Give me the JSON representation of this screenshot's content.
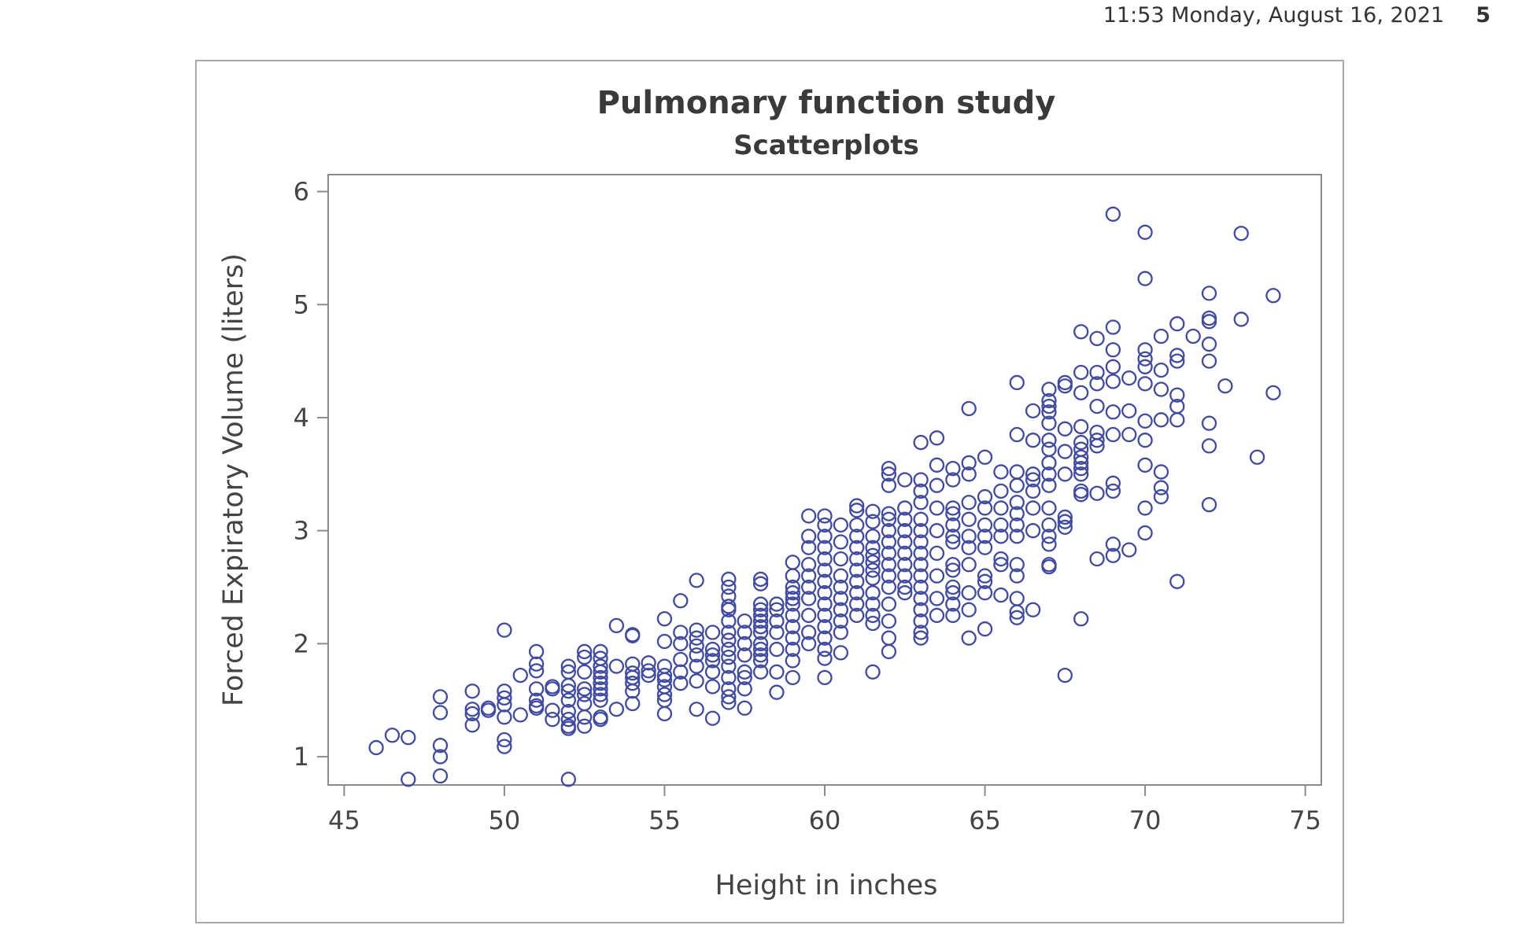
{
  "page_header": {
    "datetime": "11:53 Monday, August 16, 2021",
    "page_number": "5"
  },
  "colors": {
    "marker": "#3f4aa8",
    "axis": "#8c8c8c",
    "frame": "#a8a8a8",
    "text": "#444444"
  },
  "chart_data": {
    "type": "scatter",
    "title": "Pulmonary function study",
    "subtitle": "Scatterplots",
    "xlabel": "Height in inches",
    "ylabel": "Forced Expiratory Volume (liters)",
    "xlim": [
      44.5,
      75.5
    ],
    "ylim": [
      0.75,
      6.15
    ],
    "xticks": [
      45,
      50,
      55,
      60,
      65,
      70,
      75
    ],
    "yticks": [
      1,
      2,
      3,
      4,
      5,
      6
    ],
    "marker": "open-circle",
    "grid": false,
    "legend": "none",
    "points": [
      [
        46,
        1.08
      ],
      [
        46.5,
        1.19
      ],
      [
        47,
        1.17
      ],
      [
        47,
        0.8
      ],
      [
        48,
        1.53
      ],
      [
        48,
        1.39
      ],
      [
        48,
        1.1
      ],
      [
        48,
        1.0
      ],
      [
        48,
        0.83
      ],
      [
        49,
        1.58
      ],
      [
        49,
        1.42
      ],
      [
        49,
        1.38
      ],
      [
        49,
        1.28
      ],
      [
        49.5,
        1.43
      ],
      [
        49.5,
        1.41
      ],
      [
        50,
        2.12
      ],
      [
        50,
        1.58
      ],
      [
        50,
        1.52
      ],
      [
        50,
        1.46
      ],
      [
        50,
        1.35
      ],
      [
        50,
        1.15
      ],
      [
        50,
        1.09
      ],
      [
        50.5,
        1.72
      ],
      [
        50.5,
        1.37
      ],
      [
        51,
        1.93
      ],
      [
        51,
        1.82
      ],
      [
        51,
        1.76
      ],
      [
        51,
        1.6
      ],
      [
        51,
        1.5
      ],
      [
        51,
        1.45
      ],
      [
        51,
        1.43
      ],
      [
        51.5,
        1.62
      ],
      [
        51.5,
        1.6
      ],
      [
        51.5,
        1.41
      ],
      [
        51.5,
        1.33
      ],
      [
        52,
        1.8
      ],
      [
        52,
        1.75
      ],
      [
        52,
        1.63
      ],
      [
        52,
        1.58
      ],
      [
        52,
        1.5
      ],
      [
        52,
        1.4
      ],
      [
        52,
        1.33
      ],
      [
        52,
        1.27
      ],
      [
        52,
        1.25
      ],
      [
        52,
        0.8
      ],
      [
        52.5,
        1.93
      ],
      [
        52.5,
        1.88
      ],
      [
        52.5,
        1.75
      ],
      [
        52.5,
        1.6
      ],
      [
        52.5,
        1.55
      ],
      [
        52.5,
        1.47
      ],
      [
        52.5,
        1.35
      ],
      [
        52.5,
        1.27
      ],
      [
        53,
        1.93
      ],
      [
        53,
        1.87
      ],
      [
        53,
        1.8
      ],
      [
        53,
        1.75
      ],
      [
        53,
        1.7
      ],
      [
        53,
        1.65
      ],
      [
        53,
        1.6
      ],
      [
        53,
        1.55
      ],
      [
        53,
        1.5
      ],
      [
        53,
        1.35
      ],
      [
        53,
        1.33
      ],
      [
        53.5,
        2.16
      ],
      [
        53.5,
        1.8
      ],
      [
        53.5,
        1.42
      ],
      [
        54,
        2.08
      ],
      [
        54,
        2.07
      ],
      [
        54,
        1.82
      ],
      [
        54,
        1.74
      ],
      [
        54,
        1.7
      ],
      [
        54,
        1.65
      ],
      [
        54,
        1.58
      ],
      [
        54,
        1.47
      ],
      [
        54.5,
        1.83
      ],
      [
        54.5,
        1.76
      ],
      [
        54.5,
        1.72
      ],
      [
        55,
        2.22
      ],
      [
        55,
        2.02
      ],
      [
        55,
        1.8
      ],
      [
        55,
        1.72
      ],
      [
        55,
        1.68
      ],
      [
        55,
        1.62
      ],
      [
        55,
        1.55
      ],
      [
        55,
        1.5
      ],
      [
        55,
        1.38
      ],
      [
        55.5,
        2.38
      ],
      [
        55.5,
        2.1
      ],
      [
        55.5,
        2.0
      ],
      [
        55.5,
        1.86
      ],
      [
        55.5,
        1.75
      ],
      [
        55.5,
        1.65
      ],
      [
        56,
        2.56
      ],
      [
        56,
        2.12
      ],
      [
        56,
        2.05
      ],
      [
        56,
        1.98
      ],
      [
        56,
        1.9
      ],
      [
        56,
        1.8
      ],
      [
        56,
        1.67
      ],
      [
        56,
        1.42
      ],
      [
        56.5,
        2.1
      ],
      [
        56.5,
        1.95
      ],
      [
        56.5,
        1.9
      ],
      [
        56.5,
        1.85
      ],
      [
        56.5,
        1.75
      ],
      [
        56.5,
        1.62
      ],
      [
        56.5,
        1.34
      ],
      [
        57,
        2.57
      ],
      [
        57,
        2.5
      ],
      [
        57,
        2.42
      ],
      [
        57,
        2.33
      ],
      [
        57,
        2.3
      ],
      [
        57,
        2.2
      ],
      [
        57,
        2.1
      ],
      [
        57,
        2.03
      ],
      [
        57,
        1.95
      ],
      [
        57,
        1.88
      ],
      [
        57,
        1.8
      ],
      [
        57,
        1.7
      ],
      [
        57,
        1.6
      ],
      [
        57,
        1.53
      ],
      [
        57,
        1.48
      ],
      [
        57.5,
        2.2
      ],
      [
        57.5,
        2.1
      ],
      [
        57.5,
        2.0
      ],
      [
        57.5,
        1.9
      ],
      [
        57.5,
        1.75
      ],
      [
        57.5,
        1.7
      ],
      [
        57.5,
        1.6
      ],
      [
        57.5,
        1.43
      ],
      [
        58,
        2.57
      ],
      [
        58,
        2.53
      ],
      [
        58,
        2.35
      ],
      [
        58,
        2.3
      ],
      [
        58,
        2.25
      ],
      [
        58,
        2.2
      ],
      [
        58,
        2.15
      ],
      [
        58,
        2.1
      ],
      [
        58,
        2.0
      ],
      [
        58,
        1.95
      ],
      [
        58,
        1.9
      ],
      [
        58,
        1.85
      ],
      [
        58,
        1.75
      ],
      [
        58.5,
        2.35
      ],
      [
        58.5,
        2.3
      ],
      [
        58.5,
        2.2
      ],
      [
        58.5,
        2.1
      ],
      [
        58.5,
        1.95
      ],
      [
        58.5,
        1.75
      ],
      [
        58.5,
        1.57
      ],
      [
        59,
        2.72
      ],
      [
        59,
        2.6
      ],
      [
        59,
        2.5
      ],
      [
        59,
        2.45
      ],
      [
        59,
        2.4
      ],
      [
        59,
        2.35
      ],
      [
        59,
        2.25
      ],
      [
        59,
        2.15
      ],
      [
        59,
        2.05
      ],
      [
        59,
        1.95
      ],
      [
        59,
        1.85
      ],
      [
        59,
        1.7
      ],
      [
        59.5,
        3.13
      ],
      [
        59.5,
        2.95
      ],
      [
        59.5,
        2.85
      ],
      [
        59.5,
        2.7
      ],
      [
        59.5,
        2.6
      ],
      [
        59.5,
        2.5
      ],
      [
        59.5,
        2.4
      ],
      [
        59.5,
        2.25
      ],
      [
        59.5,
        2.1
      ],
      [
        59.5,
        2.0
      ],
      [
        60,
        3.13
      ],
      [
        60,
        3.05
      ],
      [
        60,
        2.95
      ],
      [
        60,
        2.85
      ],
      [
        60,
        2.75
      ],
      [
        60,
        2.65
      ],
      [
        60,
        2.55
      ],
      [
        60,
        2.45
      ],
      [
        60,
        2.35
      ],
      [
        60,
        2.25
      ],
      [
        60,
        2.15
      ],
      [
        60,
        2.05
      ],
      [
        60,
        1.95
      ],
      [
        60,
        1.87
      ],
      [
        60,
        1.7
      ],
      [
        60.5,
        3.05
      ],
      [
        60.5,
        2.9
      ],
      [
        60.5,
        2.75
      ],
      [
        60.5,
        2.6
      ],
      [
        60.5,
        2.5
      ],
      [
        60.5,
        2.4
      ],
      [
        60.5,
        2.3
      ],
      [
        60.5,
        2.2
      ],
      [
        60.5,
        2.1
      ],
      [
        60.5,
        1.92
      ],
      [
        61,
        3.22
      ],
      [
        61,
        3.18
      ],
      [
        61,
        3.05
      ],
      [
        61,
        2.95
      ],
      [
        61,
        2.85
      ],
      [
        61,
        2.75
      ],
      [
        61,
        2.65
      ],
      [
        61,
        2.55
      ],
      [
        61,
        2.45
      ],
      [
        61,
        2.35
      ],
      [
        61,
        2.25
      ],
      [
        61.5,
        3.17
      ],
      [
        61.5,
        3.08
      ],
      [
        61.5,
        2.95
      ],
      [
        61.5,
        2.85
      ],
      [
        61.5,
        2.78
      ],
      [
        61.5,
        2.72
      ],
      [
        61.5,
        2.65
      ],
      [
        61.5,
        2.58
      ],
      [
        61.5,
        2.45
      ],
      [
        61.5,
        2.35
      ],
      [
        61.5,
        2.25
      ],
      [
        61.5,
        2.18
      ],
      [
        61.5,
        1.75
      ],
      [
        62,
        3.55
      ],
      [
        62,
        3.5
      ],
      [
        62,
        3.4
      ],
      [
        62,
        3.15
      ],
      [
        62,
        3.1
      ],
      [
        62,
        3.0
      ],
      [
        62,
        2.9
      ],
      [
        62,
        2.8
      ],
      [
        62,
        2.7
      ],
      [
        62,
        2.6
      ],
      [
        62,
        2.5
      ],
      [
        62,
        2.35
      ],
      [
        62,
        2.2
      ],
      [
        62,
        2.05
      ],
      [
        62,
        1.93
      ],
      [
        62.5,
        3.45
      ],
      [
        62.5,
        3.2
      ],
      [
        62.5,
        3.1
      ],
      [
        62.5,
        3.0
      ],
      [
        62.5,
        2.9
      ],
      [
        62.5,
        2.8
      ],
      [
        62.5,
        2.7
      ],
      [
        62.5,
        2.6
      ],
      [
        62.5,
        2.5
      ],
      [
        62.5,
        2.45
      ],
      [
        63,
        3.78
      ],
      [
        63,
        3.45
      ],
      [
        63,
        3.35
      ],
      [
        63,
        3.25
      ],
      [
        63,
        3.1
      ],
      [
        63,
        3.0
      ],
      [
        63,
        2.9
      ],
      [
        63,
        2.8
      ],
      [
        63,
        2.7
      ],
      [
        63,
        2.6
      ],
      [
        63,
        2.5
      ],
      [
        63,
        2.4
      ],
      [
        63,
        2.3
      ],
      [
        63,
        2.2
      ],
      [
        63,
        2.1
      ],
      [
        63,
        2.05
      ],
      [
        63.5,
        3.82
      ],
      [
        63.5,
        3.58
      ],
      [
        63.5,
        3.4
      ],
      [
        63.5,
        3.2
      ],
      [
        63.5,
        3.0
      ],
      [
        63.5,
        2.8
      ],
      [
        63.5,
        2.6
      ],
      [
        63.5,
        2.4
      ],
      [
        63.5,
        2.25
      ],
      [
        64,
        3.55
      ],
      [
        64,
        3.45
      ],
      [
        64,
        3.2
      ],
      [
        64,
        3.15
      ],
      [
        64,
        3.05
      ],
      [
        64,
        2.95
      ],
      [
        64,
        2.9
      ],
      [
        64,
        2.7
      ],
      [
        64,
        2.65
      ],
      [
        64,
        2.5
      ],
      [
        64,
        2.45
      ],
      [
        64,
        2.35
      ],
      [
        64,
        2.25
      ],
      [
        64.5,
        4.08
      ],
      [
        64.5,
        3.6
      ],
      [
        64.5,
        3.5
      ],
      [
        64.5,
        3.25
      ],
      [
        64.5,
        3.1
      ],
      [
        64.5,
        2.95
      ],
      [
        64.5,
        2.85
      ],
      [
        64.5,
        2.7
      ],
      [
        64.5,
        2.45
      ],
      [
        64.5,
        2.3
      ],
      [
        64.5,
        2.05
      ],
      [
        65,
        3.65
      ],
      [
        65,
        3.3
      ],
      [
        65,
        3.2
      ],
      [
        65,
        3.05
      ],
      [
        65,
        2.95
      ],
      [
        65,
        2.85
      ],
      [
        65,
        2.6
      ],
      [
        65,
        2.55
      ],
      [
        65,
        2.45
      ],
      [
        65,
        2.13
      ],
      [
        65.5,
        3.52
      ],
      [
        65.5,
        3.35
      ],
      [
        65.5,
        3.2
      ],
      [
        65.5,
        3.05
      ],
      [
        65.5,
        2.95
      ],
      [
        65.5,
        2.75
      ],
      [
        65.5,
        2.7
      ],
      [
        65.5,
        2.43
      ],
      [
        66,
        4.31
      ],
      [
        66,
        3.85
      ],
      [
        66,
        3.52
      ],
      [
        66,
        3.4
      ],
      [
        66,
        3.25
      ],
      [
        66,
        3.15
      ],
      [
        66,
        3.05
      ],
      [
        66,
        2.95
      ],
      [
        66,
        2.7
      ],
      [
        66,
        2.6
      ],
      [
        66,
        2.4
      ],
      [
        66,
        2.28
      ],
      [
        66,
        2.23
      ],
      [
        66.5,
        4.06
      ],
      [
        66.5,
        3.8
      ],
      [
        66.5,
        3.5
      ],
      [
        66.5,
        3.45
      ],
      [
        66.5,
        3.35
      ],
      [
        66.5,
        3.2
      ],
      [
        66.5,
        3.0
      ],
      [
        66.5,
        2.3
      ],
      [
        67,
        4.25
      ],
      [
        67,
        4.15
      ],
      [
        67,
        4.1
      ],
      [
        67,
        4.05
      ],
      [
        67,
        3.95
      ],
      [
        67,
        3.8
      ],
      [
        67,
        3.72
      ],
      [
        67,
        3.6
      ],
      [
        67,
        3.5
      ],
      [
        67,
        3.4
      ],
      [
        67,
        3.2
      ],
      [
        67,
        3.05
      ],
      [
        67,
        2.95
      ],
      [
        67,
        2.88
      ],
      [
        67,
        2.7
      ],
      [
        67,
        2.68
      ],
      [
        67.5,
        4.31
      ],
      [
        67.5,
        4.28
      ],
      [
        67.5,
        3.9
      ],
      [
        67.5,
        3.7
      ],
      [
        67.5,
        3.5
      ],
      [
        67.5,
        3.12
      ],
      [
        67.5,
        3.08
      ],
      [
        67.5,
        3.03
      ],
      [
        67.5,
        1.72
      ],
      [
        68,
        4.76
      ],
      [
        68,
        4.4
      ],
      [
        68,
        4.22
      ],
      [
        68,
        3.92
      ],
      [
        68,
        3.78
      ],
      [
        68,
        3.72
      ],
      [
        68,
        3.65
      ],
      [
        68,
        3.6
      ],
      [
        68,
        3.55
      ],
      [
        68,
        3.5
      ],
      [
        68,
        3.35
      ],
      [
        68,
        3.32
      ],
      [
        68,
        2.22
      ],
      [
        68.5,
        4.7
      ],
      [
        68.5,
        4.4
      ],
      [
        68.5,
        4.3
      ],
      [
        68.5,
        4.1
      ],
      [
        68.5,
        3.87
      ],
      [
        68.5,
        3.8
      ],
      [
        68.5,
        3.75
      ],
      [
        68.5,
        3.33
      ],
      [
        68.5,
        2.75
      ],
      [
        69,
        5.8
      ],
      [
        69,
        4.8
      ],
      [
        69,
        4.6
      ],
      [
        69,
        4.45
      ],
      [
        69,
        4.32
      ],
      [
        69,
        4.05
      ],
      [
        69,
        3.85
      ],
      [
        69,
        3.42
      ],
      [
        69,
        3.35
      ],
      [
        69,
        2.88
      ],
      [
        69,
        2.78
      ],
      [
        69.5,
        4.35
      ],
      [
        69.5,
        4.06
      ],
      [
        69.5,
        3.85
      ],
      [
        69.5,
        2.83
      ],
      [
        70,
        5.64
      ],
      [
        70,
        5.23
      ],
      [
        70,
        4.6
      ],
      [
        70,
        4.52
      ],
      [
        70,
        4.45
      ],
      [
        70,
        4.3
      ],
      [
        70,
        3.97
      ],
      [
        70,
        3.8
      ],
      [
        70,
        3.58
      ],
      [
        70,
        3.2
      ],
      [
        70,
        2.98
      ],
      [
        70.5,
        4.72
      ],
      [
        70.5,
        4.42
      ],
      [
        70.5,
        4.25
      ],
      [
        70.5,
        3.98
      ],
      [
        70.5,
        3.52
      ],
      [
        70.5,
        3.38
      ],
      [
        70.5,
        3.3
      ],
      [
        71,
        4.83
      ],
      [
        71,
        4.55
      ],
      [
        71,
        4.5
      ],
      [
        71,
        4.2
      ],
      [
        71,
        4.1
      ],
      [
        71,
        3.98
      ],
      [
        71,
        2.55
      ],
      [
        71.5,
        4.72
      ],
      [
        72,
        5.1
      ],
      [
        72,
        4.88
      ],
      [
        72,
        4.85
      ],
      [
        72,
        4.65
      ],
      [
        72,
        4.5
      ],
      [
        72,
        3.95
      ],
      [
        72,
        3.75
      ],
      [
        72,
        3.23
      ],
      [
        72.5,
        4.28
      ],
      [
        73,
        5.63
      ],
      [
        73,
        4.87
      ],
      [
        73.5,
        3.65
      ],
      [
        74,
        5.08
      ],
      [
        74,
        4.22
      ]
    ]
  }
}
